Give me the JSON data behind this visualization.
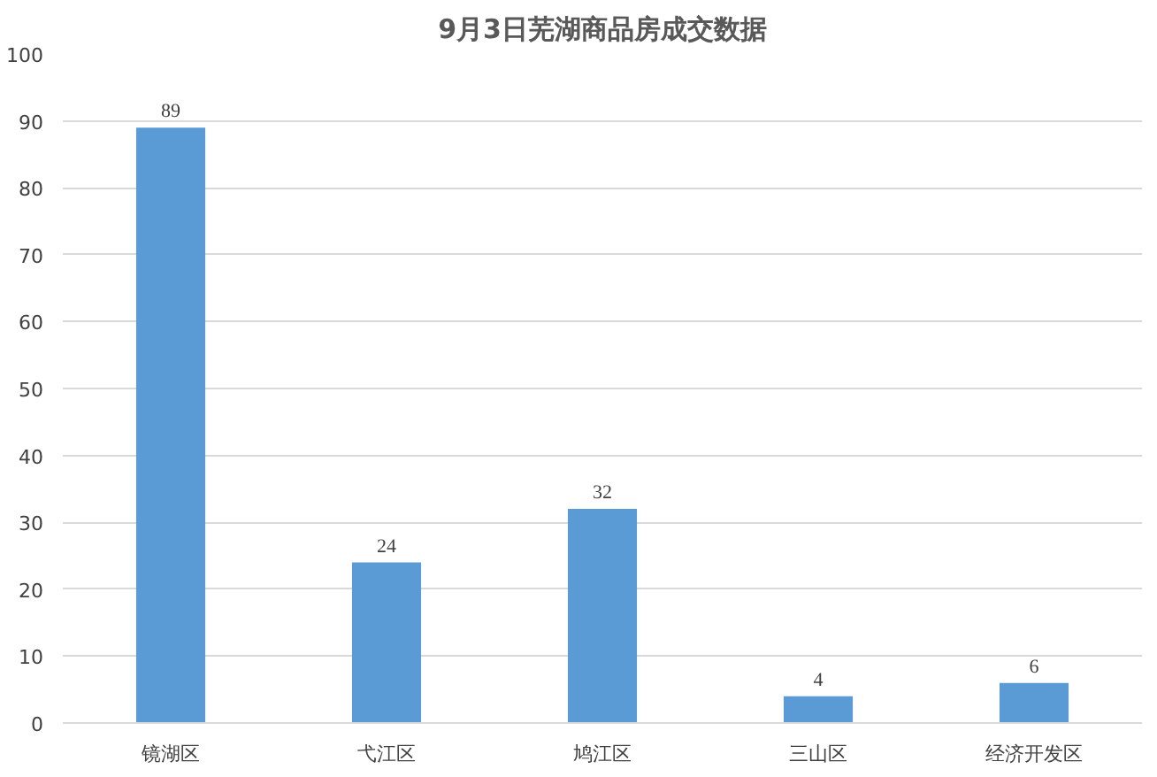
{
  "chart_data": {
    "type": "bar",
    "title": "9月3日芜湖商品房成交数据",
    "categories": [
      "镜湖区",
      "弋江区",
      "鸠江区",
      "三山区",
      "经济开发区"
    ],
    "values": [
      89,
      24,
      32,
      4,
      6
    ],
    "color": "#5b9bd5",
    "ylim": [
      0,
      100
    ],
    "yticks": [
      0,
      10,
      20,
      30,
      40,
      50,
      60,
      70,
      80,
      90,
      100
    ],
    "grid": "y",
    "data_labels": true
  }
}
